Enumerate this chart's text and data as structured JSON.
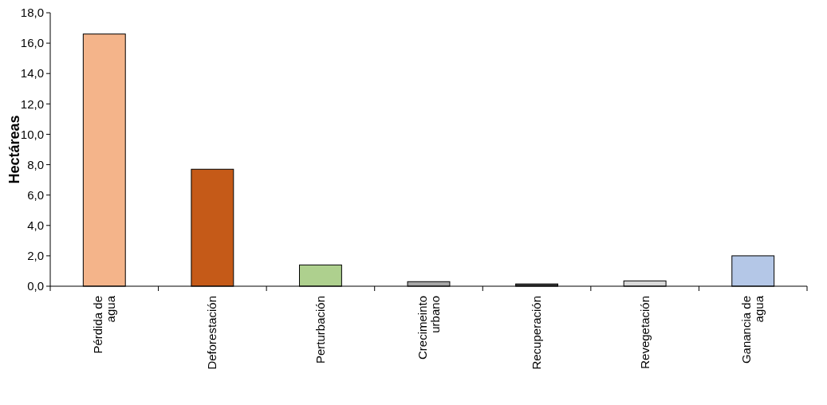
{
  "chart_data": {
    "type": "bar",
    "ylabel": "Hectáreas",
    "categories": [
      "Pérdida de\nagua",
      "Deforestación",
      "Perturbación",
      "Crecimeinto\nurbano",
      "Recuperación",
      "Revegetación",
      "Ganancia de\nagua"
    ],
    "values": [
      16.6,
      7.7,
      1.4,
      0.3,
      0.15,
      0.35,
      2.0
    ],
    "colors": [
      "#f4b48a",
      "#c55a18",
      "#aed08e",
      "#a6a6a6",
      "#3a3a3a",
      "#d9d9d9",
      "#b4c7e7"
    ],
    "ylim": [
      0,
      18
    ],
    "yticks": [
      {
        "value": 0,
        "label": "0,0"
      },
      {
        "value": 2,
        "label": "2,0"
      },
      {
        "value": 4,
        "label": "4,0"
      },
      {
        "value": 6,
        "label": "6,0"
      },
      {
        "value": 8,
        "label": "8,0"
      },
      {
        "value": 10,
        "label": "10,0"
      },
      {
        "value": 12,
        "label": "12,0"
      },
      {
        "value": 14,
        "label": "14,0"
      },
      {
        "value": 16,
        "label": "16,0"
      },
      {
        "value": 18,
        "label": "18,0"
      }
    ],
    "grid": false
  }
}
